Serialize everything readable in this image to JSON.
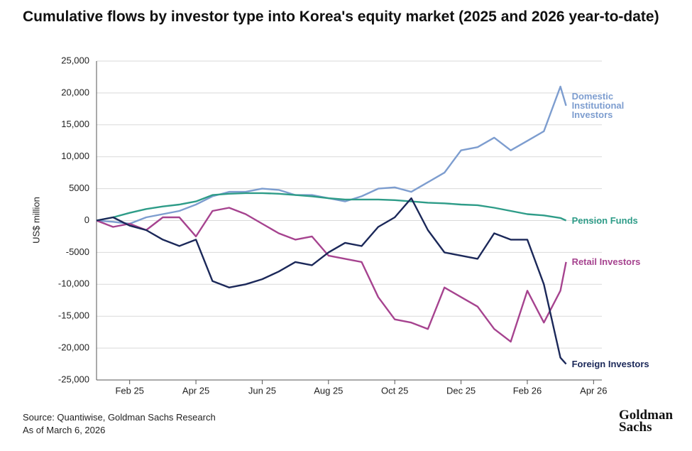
{
  "chart_data": {
    "type": "line",
    "title": "Cumulative flows by investor type into Korea's equity market (2025 and 2026 year-to-date)",
    "y_label": "US$ million",
    "source": "Source: Quantiwise, Goldman Sachs Research",
    "note": "As of March 6, 2026",
    "logo": "Goldman Sachs",
    "x": [
      0,
      0.5,
      1,
      1.5,
      2,
      2.5,
      3,
      3.5,
      4,
      4.5,
      5,
      5.5,
      6,
      6.5,
      7,
      7.5,
      8,
      8.5,
      9,
      9.5,
      10,
      10.5,
      11,
      11.5,
      12,
      12.5,
      13,
      13.5,
      14,
      14.17
    ],
    "xlim": [
      0,
      15.25
    ],
    "xticks": [
      {
        "value": 1,
        "label": "Feb 25"
      },
      {
        "value": 3,
        "label": "Apr 25"
      },
      {
        "value": 5,
        "label": "Jun 25"
      },
      {
        "value": 7,
        "label": "Aug 25"
      },
      {
        "value": 9,
        "label": "Oct 25"
      },
      {
        "value": 11,
        "label": "Dec 25"
      },
      {
        "value": 13,
        "label": "Feb 26"
      },
      {
        "value": 15,
        "label": "Apr 26"
      }
    ],
    "ylim": [
      -25000,
      25000
    ],
    "yticks": [
      {
        "value": -25000,
        "label": "-25,000"
      },
      {
        "value": -20000,
        "label": "-20,000"
      },
      {
        "value": -15000,
        "label": "-15,000"
      },
      {
        "value": -10000,
        "label": "-10,000"
      },
      -5000,
      0,
      5000,
      {
        "value": 10000,
        "label": "10,000"
      },
      {
        "value": 15000,
        "label": "15,000"
      },
      {
        "value": 20000,
        "label": "20,000"
      },
      {
        "value": 25000,
        "label": "25,000"
      }
    ],
    "grid": true,
    "series": [
      {
        "name": "Domestic Institutional Investors",
        "color": "#7d9dcf",
        "values": [
          0,
          -200,
          -500,
          500,
          1000,
          1500,
          2500,
          3800,
          4500,
          4500,
          5000,
          4800,
          4000,
          4000,
          3500,
          3000,
          3800,
          5000,
          5200,
          4500,
          6000,
          7500,
          11000,
          11500,
          13000,
          11000,
          12500,
          14000,
          21000,
          18000
        ]
      },
      {
        "name": "Pension Funds",
        "color": "#2e9c88",
        "values": [
          0,
          500,
          1200,
          1800,
          2200,
          2500,
          3000,
          4000,
          4200,
          4300,
          4300,
          4200,
          4000,
          3800,
          3500,
          3300,
          3300,
          3300,
          3200,
          3000,
          2800,
          2700,
          2500,
          2400,
          2000,
          1500,
          1000,
          800,
          400,
          0
        ]
      },
      {
        "name": "Retail Investors",
        "color": "#a6438f",
        "values": [
          0,
          -1000,
          -500,
          -1500,
          500,
          500,
          -2500,
          1500,
          2000,
          1000,
          -500,
          -2000,
          -3000,
          -2500,
          -5500,
          -6000,
          -6500,
          -12000,
          -15500,
          -16000,
          -17000,
          -10500,
          -12000,
          -13500,
          -17000,
          -19000,
          -11000,
          -16000,
          -11000,
          -6500
        ]
      },
      {
        "name": "Foreign Investors",
        "color": "#1b2859",
        "values": [
          0,
          500,
          -800,
          -1500,
          -3000,
          -4000,
          -3000,
          -9500,
          -10500,
          -10000,
          -9200,
          -8000,
          -6500,
          -7000,
          -5000,
          -3500,
          -4000,
          -1000,
          500,
          3500,
          -1500,
          -5000,
          -5500,
          -6000,
          -2000,
          -3000,
          -3000,
          -10000,
          -21500,
          -22500
        ]
      }
    ]
  }
}
